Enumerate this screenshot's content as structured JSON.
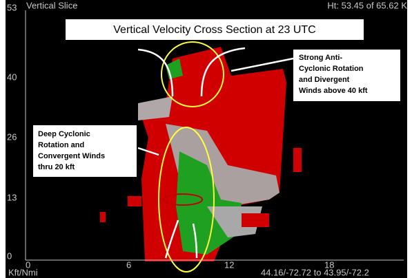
{
  "header": {
    "left": "Vertical Slice",
    "right": "Ht: 53.45 of 65.62 K"
  },
  "title": "Vertical Velocity Cross Section at 23 UTC",
  "annotations": [
    {
      "lines": [
        "Strong Anti-",
        "Cyclonic Rotation",
        "and Divergent",
        "Winds above 40 kft"
      ]
    },
    {
      "lines": [
        "Deep Cyclonic",
        "Rotation and",
        "Convergent Winds",
        "thru 20 kft"
      ]
    }
  ],
  "y_axis": {
    "labels": [
      "53",
      "40",
      "26",
      "13",
      "0"
    ]
  },
  "x_axis": {
    "labels": [
      "0",
      "6",
      "12",
      "18"
    ],
    "unit": "Kft/Nmi"
  },
  "footer": "44.16/-72.72 to 43.95/-72.2"
}
